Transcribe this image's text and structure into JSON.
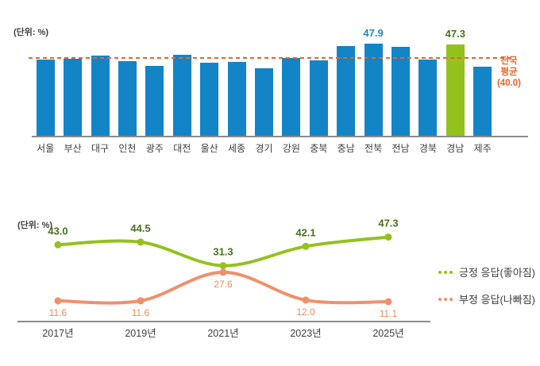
{
  "chart_data": [
    {
      "type": "bar",
      "unit_label": "(단위: %)",
      "categories": [
        "서울",
        "부산",
        "대구",
        "인천",
        "광주",
        "대전",
        "울산",
        "세종",
        "경기",
        "강원",
        "충북",
        "충남",
        "전북",
        "전남",
        "경북",
        "경남",
        "제주"
      ],
      "values": [
        39.7,
        39.9,
        41.6,
        38.8,
        36.3,
        41.9,
        38.0,
        38.3,
        35.1,
        40.5,
        39.2,
        46.4,
        47.9,
        46.2,
        39.5,
        47.3,
        35.8
      ],
      "bar_color": "#1384c6",
      "highlight": {
        "category": "경남",
        "color": "#95c11f"
      },
      "data_labels": [
        {
          "category": "전북",
          "text": "47.9",
          "color": "#1e87c9"
        },
        {
          "category": "경남",
          "text": "47.3",
          "color": "#48721b"
        }
      ],
      "average_line": {
        "value": 40.0,
        "label": "전국\n평균\n(40.0)",
        "color": "#e6662a",
        "style": "dashed"
      },
      "ylim": [
        0,
        49
      ],
      "grid": false,
      "legend_position": "none"
    },
    {
      "type": "line",
      "unit_label": "(단위: %)",
      "x": [
        "2017년",
        "2019년",
        "2021년",
        "2023년",
        "2025년"
      ],
      "series": [
        {
          "name": "긍정 응답(좋아짐)",
          "values": [
            43.0,
            44.5,
            31.3,
            42.1,
            47.3
          ],
          "color": "#95c11f",
          "label_color": "#48721b",
          "labels_position": "above"
        },
        {
          "name": "부정 응답(나빠짐)",
          "values": [
            11.6,
            11.6,
            27.6,
            12.0,
            11.1
          ],
          "color": "#f0906b",
          "label_color": "#ef8a5f",
          "labels_position": "below"
        }
      ],
      "ylim": [
        0,
        55
      ],
      "grid": false,
      "legend_position": "right"
    }
  ]
}
